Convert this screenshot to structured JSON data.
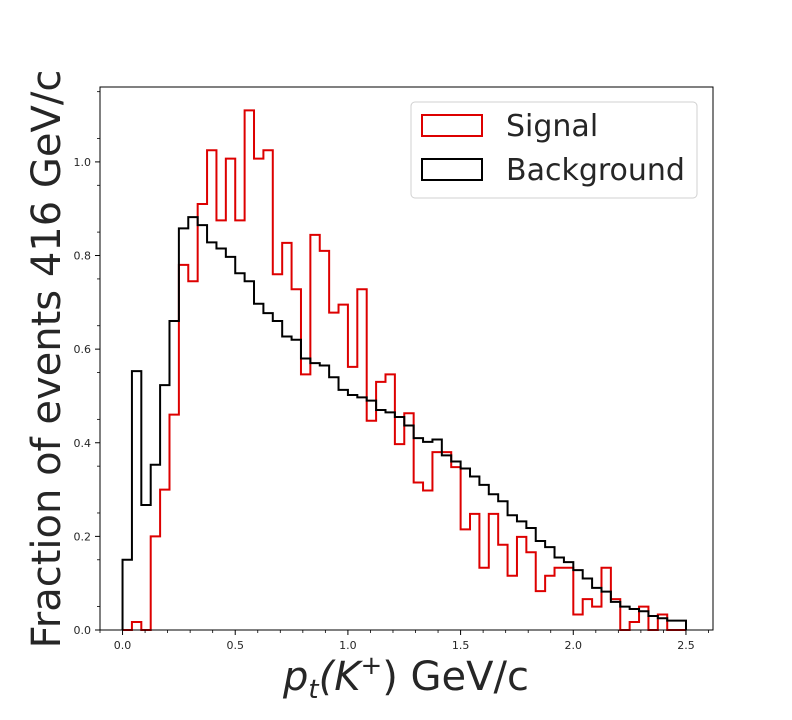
{
  "chart_data": {
    "type": "step-histogram",
    "xlabel_main": "p",
    "xlabel_sub": "t",
    "xlabel_mid": "(K",
    "xlabel_sup": "+",
    "xlabel_tail": ") GeV/c",
    "ylabel": "Fraction of events 416 GeV/c",
    "xlim": [
      -0.1,
      2.62
    ],
    "ylim": [
      0,
      1.16
    ],
    "x_ticks": [
      0.0,
      0.5,
      1.0,
      1.5,
      2.0,
      2.5
    ],
    "x_tick_labels": [
      "0.0",
      "0.5",
      "1.0",
      "1.5",
      "2.0",
      "2.5"
    ],
    "y_ticks": [
      0.0,
      0.2,
      0.4,
      0.6,
      0.8,
      1.0
    ],
    "y_tick_labels": [
      "0.0",
      "0.2",
      "0.4",
      "0.6",
      "0.8",
      "1.0"
    ],
    "bin_edges_start": 0.0,
    "bin_width": 0.04167,
    "legend_position": "top-right",
    "series": [
      {
        "name": "Signal",
        "color": "#dd0000",
        "values": [
          0.0,
          0.017,
          0.0,
          0.2,
          0.3,
          0.46,
          0.78,
          0.745,
          0.91,
          1.025,
          0.875,
          1.007,
          0.875,
          1.11,
          1.007,
          1.025,
          0.76,
          0.827,
          0.728,
          0.546,
          0.844,
          0.81,
          0.678,
          0.695,
          0.562,
          0.728,
          0.447,
          0.53,
          0.546,
          0.397,
          0.463,
          0.315,
          0.298,
          0.38,
          0.38,
          0.348,
          0.215,
          0.248,
          0.133,
          0.248,
          0.182,
          0.116,
          0.199,
          0.166,
          0.083,
          0.116,
          0.133,
          0.133,
          0.033,
          0.066,
          0.05,
          0.133,
          0.066,
          0.0,
          0.017,
          0.05,
          0.0,
          0.033,
          0.0,
          0.0
        ]
      },
      {
        "name": "Background",
        "color": "#000000",
        "values": [
          0.15,
          0.553,
          0.267,
          0.353,
          0.523,
          0.66,
          0.858,
          0.882,
          0.865,
          0.828,
          0.815,
          0.797,
          0.762,
          0.745,
          0.697,
          0.677,
          0.66,
          0.627,
          0.62,
          0.58,
          0.57,
          0.565,
          0.54,
          0.513,
          0.502,
          0.497,
          0.49,
          0.47,
          0.465,
          0.455,
          0.437,
          0.41,
          0.402,
          0.407,
          0.373,
          0.36,
          0.345,
          0.328,
          0.31,
          0.29,
          0.275,
          0.245,
          0.232,
          0.218,
          0.19,
          0.177,
          0.155,
          0.145,
          0.128,
          0.11,
          0.09,
          0.082,
          0.06,
          0.05,
          0.045,
          0.04,
          0.03,
          0.025,
          0.02,
          0.02
        ]
      }
    ]
  }
}
